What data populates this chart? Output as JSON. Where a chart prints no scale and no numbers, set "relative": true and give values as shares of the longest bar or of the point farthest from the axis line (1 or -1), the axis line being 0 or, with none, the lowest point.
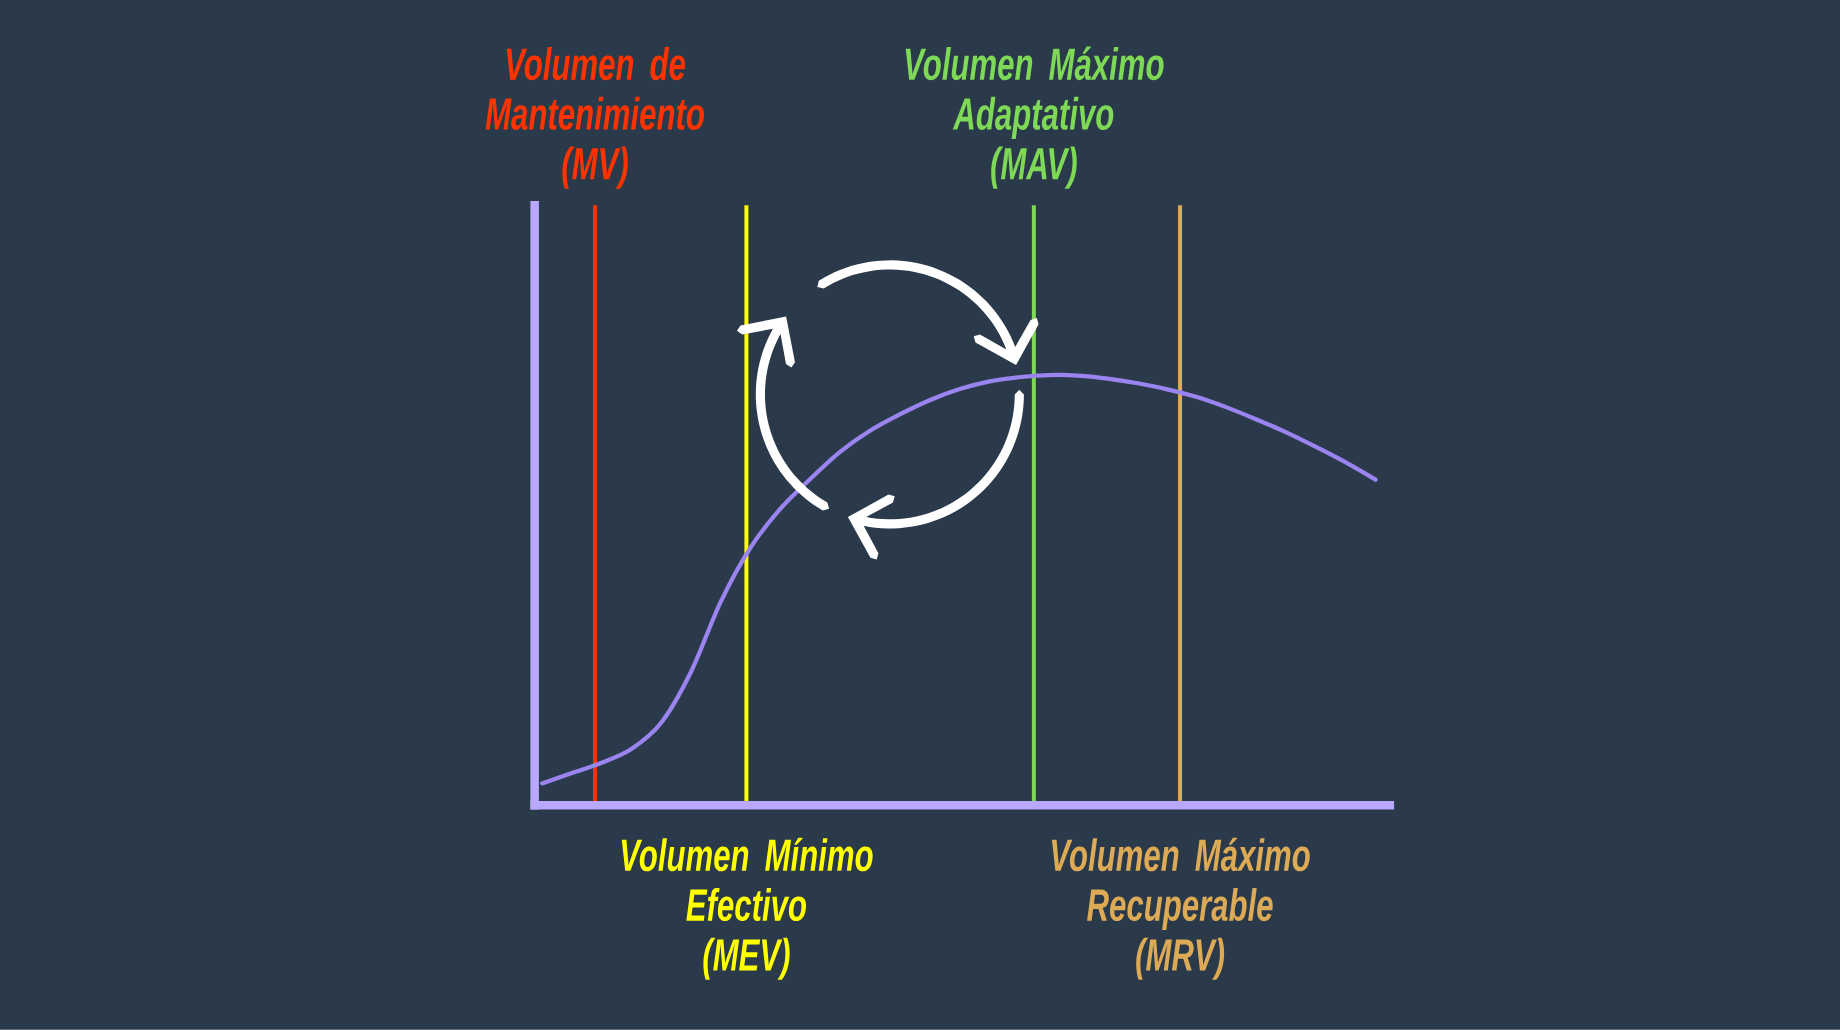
{
  "chart_data": {
    "type": "line",
    "relative": true,
    "categories": [
      null,
      null,
      null,
      null,
      null,
      null,
      null,
      null,
      null,
      null,
      null,
      null,
      null,
      null,
      null,
      null,
      null,
      null,
      null,
      null,
      null,
      null,
      null,
      null,
      null,
      null,
      null,
      null,
      null
    ],
    "values": [
      0.051,
      0.075,
      0.099,
      0.131,
      0.192,
      0.31,
      0.473,
      0.599,
      0.689,
      0.758,
      0.821,
      0.87,
      0.908,
      0.941,
      0.967,
      0.985,
      0.995,
      1,
      0.999,
      0.992,
      0.981,
      0.967,
      0.949,
      0.925,
      0.897,
      0.867,
      0.833,
      0.797,
      0.757
    ],
    "color": "#9a84f0",
    "annotations": [
      "Volumen de Mantenimiento (MV)",
      "Volumen Mínimo Efectivo (MEV)",
      "Volumen Máximo Adaptativo (MAV)",
      "Volumen Máximo Recuperable (MRV)"
    ]
  }
}
